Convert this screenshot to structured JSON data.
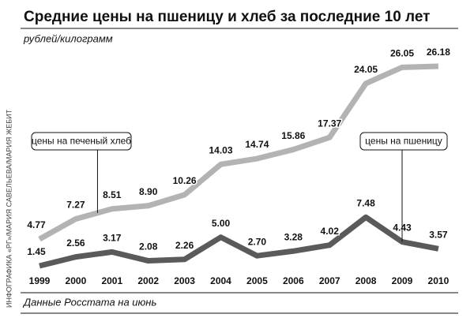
{
  "chart_data": {
    "type": "line",
    "title": "Средние цены на пшеницу и хлеб за последние 10 лет",
    "subtitle": "рублей/килограмм",
    "credit": "ИНФОГРАФИКА «РГ»/МАРИЯ САВЕЛЬЕВА/МАРИЯ ЖЕБИТ",
    "source": "Данные Росстата на июнь",
    "categories": [
      "1999",
      "2000",
      "2001",
      "2002",
      "2003",
      "2004",
      "2005",
      "2006",
      "2007",
      "2008",
      "2009",
      "2010"
    ],
    "series": [
      {
        "name": "цены на печеный хлеб",
        "color": "#b3b3b3",
        "values": [
          4.77,
          7.27,
          8.51,
          8.9,
          10.26,
          14.03,
          14.74,
          15.86,
          17.37,
          24.05,
          26.05,
          26.18
        ],
        "value_labels": [
          "4.77",
          "7.27",
          "8.51",
          "8.90",
          "10.26",
          "14.03",
          "14.74",
          "15.86",
          "17.37",
          "24.05",
          "26.05",
          "26.18"
        ]
      },
      {
        "name": "цены на пшеницу",
        "color": "#5a5a5a",
        "values": [
          1.45,
          2.56,
          3.17,
          2.08,
          2.26,
          5.0,
          2.7,
          3.28,
          4.02,
          7.48,
          4.43,
          3.57
        ],
        "value_labels": [
          "1.45",
          "2.56",
          "3.17",
          "2.08",
          "2.26",
          "5.00",
          "2.70",
          "3.28",
          "4.02",
          "7.48",
          "4.43",
          "3.57"
        ]
      }
    ]
  }
}
